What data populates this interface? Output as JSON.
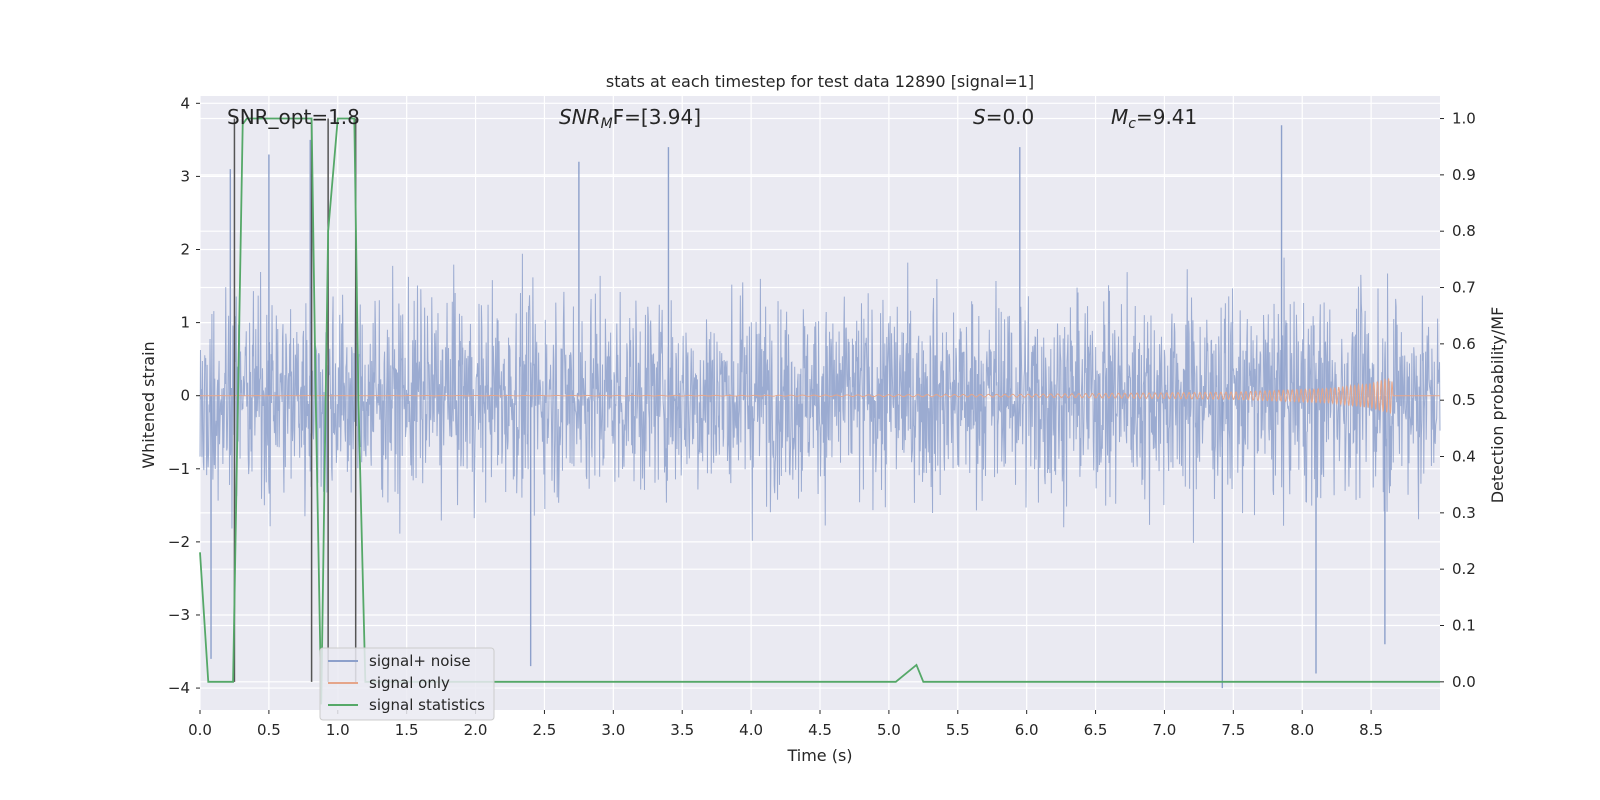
{
  "chart_data": {
    "type": "line",
    "title": "stats at each timestep for test data 12890 [signal=1]",
    "xlabel": "Time (s)",
    "ylabel_left": "Whitened strain",
    "ylabel_right": "Detection probability/MF",
    "xlim": [
      0.0,
      9.0
    ],
    "ylim_left": [
      -4.3,
      4.1
    ],
    "ylim_right": [
      -0.05,
      1.04
    ],
    "xticks": [
      0.0,
      0.5,
      1.0,
      1.5,
      2.0,
      2.5,
      3.0,
      3.5,
      4.0,
      4.5,
      5.0,
      5.5,
      6.0,
      6.5,
      7.0,
      7.5,
      8.0,
      8.5
    ],
    "xtick_labels": [
      "0.0",
      "0.5",
      "1.0",
      "1.5",
      "2.0",
      "2.5",
      "3.0",
      "3.5",
      "4.0",
      "4.5",
      "5.0",
      "5.5",
      "6.0",
      "6.5",
      "7.0",
      "7.5",
      "8.0",
      "8.5"
    ],
    "yticks_left": [
      4,
      3,
      2,
      1,
      0,
      -1,
      -2,
      -3,
      -4
    ],
    "ytick_labels_left": [
      "4",
      "3",
      "2",
      "1",
      "0",
      "−1",
      "−2",
      "−3",
      "−4"
    ],
    "yticks_right": [
      1.0,
      0.9,
      0.8,
      0.7,
      0.6,
      0.5,
      0.4,
      0.3,
      0.2,
      0.1,
      0.0
    ],
    "ytick_labels_right": [
      "1.0",
      "0.9",
      "0.8",
      "0.7",
      "0.6",
      "0.5",
      "0.4",
      "0.3",
      "0.2",
      "0.1",
      "0.0"
    ],
    "annotations": [
      {
        "text": "SNR_opt=1.8",
        "x": 0.19,
        "y": 3.85
      },
      {
        "text": "SNR_MF=[3.94]",
        "x": 2.6,
        "y": 3.85
      },
      {
        "text": "S=0.0",
        "x": 5.6,
        "y": 3.85
      },
      {
        "text": "M_c=9.41",
        "x": 6.6,
        "y": 3.85
      }
    ],
    "annotation_labels": {
      "snr_opt": "SNR_opt=1.8",
      "snr_mf_base": "SNR",
      "snr_mf_sub": "M",
      "snr_mf_rest": "F=[3.94]",
      "s_var": "S",
      "s_rest": "=0.0",
      "mc_base": "M",
      "mc_sub": "c",
      "mc_rest": "=9.41"
    },
    "legend": {
      "placement": "lower-left",
      "entries": [
        {
          "label": "signal+ noise",
          "color": "#8da0cb"
        },
        {
          "label": "signal only",
          "color": "#e5a58a"
        },
        {
          "label": "signal statistics",
          "color": "#55a868"
        }
      ]
    },
    "series": [
      {
        "name": "signal+ noise",
        "axis": "left",
        "color": "#8da0cb",
        "description": "whitened noisy strain, roughly Gaussian, amplitude within about ±2.5 with spikes to ±3.7",
        "band_core": [
          -1.7,
          1.7
        ],
        "envelope_typical": [
          -2.5,
          2.5
        ],
        "notable_spikes": [
          {
            "t": 0.22,
            "v": 3.1
          },
          {
            "t": 0.5,
            "v": 3.3
          },
          {
            "t": 0.8,
            "v": 3.5
          },
          {
            "t": 2.75,
            "v": 3.2
          },
          {
            "t": 3.4,
            "v": 3.4
          },
          {
            "t": 5.95,
            "v": 3.4
          },
          {
            "t": 7.85,
            "v": 3.7
          },
          {
            "t": 0.08,
            "v": -3.6
          },
          {
            "t": 2.4,
            "v": -3.7
          },
          {
            "t": 7.42,
            "v": -4.0
          },
          {
            "t": 8.1,
            "v": -3.8
          },
          {
            "t": 8.6,
            "v": -3.4
          }
        ]
      },
      {
        "name": "signal only",
        "axis": "left",
        "color": "#e5a58a",
        "description": "chirp signal near zero growing in amplitude up to about ±0.25 near t=8.65 s",
        "envelope": [
          {
            "t": 0.0,
            "amp": 0.0
          },
          {
            "t": 4.0,
            "amp": 0.005
          },
          {
            "t": 6.0,
            "amp": 0.02
          },
          {
            "t": 7.5,
            "amp": 0.05
          },
          {
            "t": 8.2,
            "amp": 0.1
          },
          {
            "t": 8.5,
            "amp": 0.17
          },
          {
            "t": 8.65,
            "amp": 0.25
          },
          {
            "t": 8.66,
            "amp": 0.0
          },
          {
            "t": 9.0,
            "amp": 0.0
          }
        ]
      },
      {
        "name": "signal statistics",
        "axis": "right",
        "color": "#55a868",
        "x": [
          0.0,
          0.06,
          0.24,
          0.31,
          0.34,
          0.81,
          0.84,
          0.88,
          0.93,
          1.0,
          1.12,
          1.15,
          1.2,
          5.05,
          5.1,
          5.2,
          5.25,
          9.0
        ],
        "y": [
          0.23,
          0.0,
          0.0,
          0.99,
          1.0,
          1.0,
          0.5,
          -0.04,
          0.8,
          1.0,
          1.0,
          0.5,
          0.0,
          0.0,
          0.01,
          0.03,
          0.0,
          0.0
        ]
      }
    ],
    "vertical_markers": {
      "color": "#555555",
      "x": [
        0.25,
        0.81,
        0.93,
        1.13
      ]
    }
  }
}
